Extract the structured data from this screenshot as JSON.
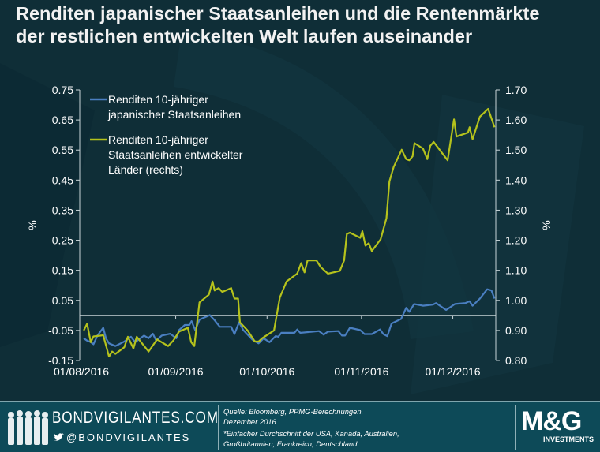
{
  "title": "Renditen japanischer Staatsanleihen und die Rentenmärkte der restlichen entwickelten Welt laufen auseinander",
  "chart_data": {
    "type": "line",
    "title": "Renditen japanischer Staatsanleihen und die Rentenmärkte der restlichen entwickelten Welt laufen auseinander",
    "x_unit": "days since 01/08/2016",
    "x_ticks": [
      {
        "day": 0,
        "label": "01/08/2016"
      },
      {
        "day": 31,
        "label": "01/09/2016"
      },
      {
        "day": 61,
        "label": "01/10/2016"
      },
      {
        "day": 92,
        "label": "01/11/2016"
      },
      {
        "day": 122,
        "label": "01/12/2016"
      }
    ],
    "xlim": [
      0,
      136
    ],
    "ylabel_left": "%",
    "ylabel_right": "%",
    "ylim_left": [
      -0.15,
      0.75
    ],
    "ylim_right": [
      0.8,
      1.7
    ],
    "yticks_left": [
      "0.75",
      "0.65",
      "0.55",
      "0.45",
      "0.35",
      "0.25",
      "0.15",
      "0.05",
      "-0.05",
      "-0.15"
    ],
    "yticks_right": [
      "1.70",
      "1.60",
      "1.50",
      "1.40",
      "1.30",
      "1.20",
      "1.10",
      "1.00",
      "0.90",
      "0.80"
    ],
    "zero_line_left": 0,
    "legend_position": "top-left",
    "series": [
      {
        "name": "Renditen 10-jähriger japanischer Staatsanleihen",
        "axis": "left",
        "color": "#4a7fc1",
        "points": [
          [
            0.8,
            -0.076
          ],
          [
            1.9,
            -0.084
          ],
          [
            3.1,
            -0.089
          ],
          [
            4.0,
            -0.096
          ],
          [
            5.3,
            -0.067
          ],
          [
            7.2,
            -0.041
          ],
          [
            8.1,
            -0.076
          ],
          [
            9.1,
            -0.093
          ],
          [
            11.2,
            -0.102
          ],
          [
            14.1,
            -0.087
          ],
          [
            16.3,
            -0.071
          ],
          [
            17.7,
            -0.089
          ],
          [
            20.6,
            -0.067
          ],
          [
            22.1,
            -0.076
          ],
          [
            23.5,
            -0.061
          ],
          [
            24.6,
            -0.084
          ],
          [
            26.4,
            -0.067
          ],
          [
            29.2,
            -0.061
          ],
          [
            31.2,
            -0.076
          ],
          [
            32.1,
            -0.049
          ],
          [
            34.0,
            -0.032
          ],
          [
            35.5,
            -0.032
          ],
          [
            36.2,
            -0.019
          ],
          [
            37.4,
            -0.049
          ],
          [
            38.8,
            -0.014
          ],
          [
            42.2,
            0.001
          ],
          [
            43.6,
            -0.014
          ],
          [
            45.5,
            -0.038
          ],
          [
            49.2,
            -0.038
          ],
          [
            50.3,
            -0.062
          ],
          [
            51.8,
            -0.023
          ],
          [
            53.2,
            -0.049
          ],
          [
            56.1,
            -0.08
          ],
          [
            58.2,
            -0.093
          ],
          [
            59.9,
            -0.076
          ],
          [
            61.8,
            -0.089
          ],
          [
            63.8,
            -0.069
          ],
          [
            64.7,
            -0.071
          ],
          [
            65.7,
            -0.058
          ],
          [
            70.0,
            -0.058
          ],
          [
            70.9,
            -0.047
          ],
          [
            71.9,
            -0.058
          ],
          [
            78.1,
            -0.052
          ],
          [
            79.6,
            -0.064
          ],
          [
            81.0,
            -0.054
          ],
          [
            84.4,
            -0.052
          ],
          [
            85.6,
            -0.067
          ],
          [
            86.6,
            -0.067
          ],
          [
            88.2,
            -0.041
          ],
          [
            91.6,
            -0.049
          ],
          [
            93.0,
            -0.062
          ],
          [
            95.4,
            -0.062
          ],
          [
            98.1,
            -0.047
          ],
          [
            99.2,
            -0.062
          ],
          [
            100.5,
            -0.069
          ],
          [
            101.9,
            -0.027
          ],
          [
            105.0,
            -0.012
          ],
          [
            106.7,
            0.025
          ],
          [
            107.7,
            0.012
          ],
          [
            109.3,
            0.038
          ],
          [
            112.2,
            0.032
          ],
          [
            115.5,
            0.036
          ],
          [
            116.5,
            0.041
          ],
          [
            119.8,
            0.018
          ],
          [
            122.7,
            0.038
          ],
          [
            126.1,
            0.041
          ],
          [
            127.5,
            0.047
          ],
          [
            128.5,
            0.032
          ],
          [
            130.9,
            0.056
          ],
          [
            133.3,
            0.087
          ],
          [
            134.7,
            0.083
          ],
          [
            135.7,
            0.056
          ]
        ]
      },
      {
        "name": "Renditen 10-jähriger Staatsanleihen entwickelter Länder (rechts)",
        "axis": "right",
        "color": "#b5c21c",
        "points": [
          [
            0.8,
            0.9
          ],
          [
            1.9,
            0.922
          ],
          [
            3.1,
            0.861
          ],
          [
            4.0,
            0.88
          ],
          [
            7.2,
            0.884
          ],
          [
            9.1,
            0.813
          ],
          [
            10.1,
            0.83
          ],
          [
            11.2,
            0.822
          ],
          [
            14.1,
            0.844
          ],
          [
            15.3,
            0.879
          ],
          [
            17.1,
            0.84
          ],
          [
            18.2,
            0.879
          ],
          [
            22.1,
            0.83
          ],
          [
            24.9,
            0.87
          ],
          [
            28.5,
            0.848
          ],
          [
            30.2,
            0.866
          ],
          [
            32.1,
            0.896
          ],
          [
            35.0,
            0.909
          ],
          [
            36.1,
            0.861
          ],
          [
            37.1,
            0.848
          ],
          [
            38.8,
            0.993
          ],
          [
            41.9,
            1.019
          ],
          [
            43.1,
            1.063
          ],
          [
            43.8,
            1.033
          ],
          [
            45.1,
            1.041
          ],
          [
            46.3,
            1.028
          ],
          [
            49.2,
            1.041
          ],
          [
            50.3,
            1.006
          ],
          [
            51.5,
            1.006
          ],
          [
            52.1,
            0.927
          ],
          [
            54.6,
            0.9
          ],
          [
            57.0,
            0.863
          ],
          [
            58.2,
            0.863
          ],
          [
            59.4,
            0.874
          ],
          [
            63.3,
            0.9
          ],
          [
            65.2,
            1.01
          ],
          [
            67.4,
            1.063
          ],
          [
            70.9,
            1.089
          ],
          [
            72.2,
            1.124
          ],
          [
            73.3,
            1.093
          ],
          [
            74.3,
            1.133
          ],
          [
            77.2,
            1.133
          ],
          [
            78.6,
            1.111
          ],
          [
            81.0,
            1.089
          ],
          [
            84.9,
            1.098
          ],
          [
            86.3,
            1.133
          ],
          [
            87.2,
            1.221
          ],
          [
            88.2,
            1.225
          ],
          [
            91.6,
            1.208
          ],
          [
            92.3,
            1.23
          ],
          [
            93.3,
            1.182
          ],
          [
            94.4,
            1.19
          ],
          [
            95.4,
            1.164
          ],
          [
            98.3,
            1.203
          ],
          [
            100.2,
            1.273
          ],
          [
            101.2,
            1.396
          ],
          [
            102.6,
            1.444
          ],
          [
            105.2,
            1.501
          ],
          [
            106.7,
            1.47
          ],
          [
            107.7,
            1.466
          ],
          [
            108.8,
            1.479
          ],
          [
            109.4,
            1.523
          ],
          [
            112.2,
            1.505
          ],
          [
            113.6,
            1.47
          ],
          [
            114.6,
            1.514
          ],
          [
            115.7,
            1.527
          ],
          [
            120.3,
            1.466
          ],
          [
            122.4,
            1.602
          ],
          [
            123.2,
            1.545
          ],
          [
            127.0,
            1.558
          ],
          [
            127.5,
            1.576
          ],
          [
            128.5,
            1.536
          ],
          [
            130.9,
            1.611
          ],
          [
            133.6,
            1.637
          ],
          [
            135.7,
            1.576
          ]
        ]
      }
    ]
  },
  "footer": {
    "site": "BONDVIGILANTES.COM",
    "twitter": "@BONDVIGILANTES",
    "source_line1": "Quelle: Bloomberg, PPMG-Berechnungen.",
    "source_line2": "Dezember 2016.",
    "note": "*Einfacher Durchschnitt der USA,  Kanada, Australien, Großbritannien, Frankreich, Deutschland.",
    "logo_text": "M&G",
    "logo_sub": "INVESTMENTS"
  }
}
